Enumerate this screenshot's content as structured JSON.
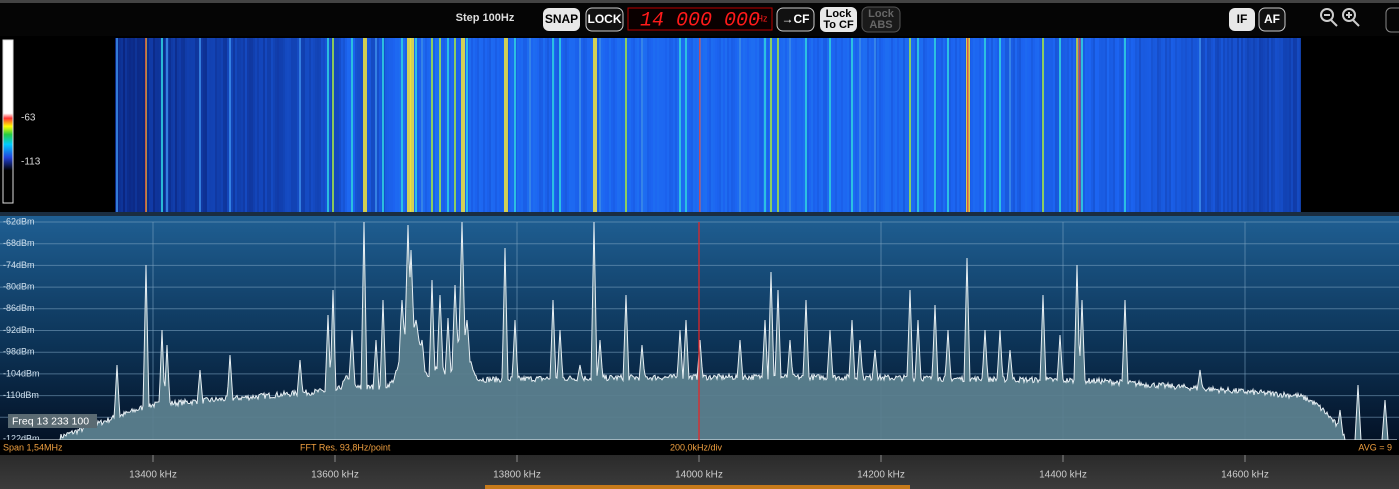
{
  "toolbar": {
    "step": "Step 100Hz",
    "snap": "SNAP",
    "lock": "LOCK",
    "frequency": "14 000 000",
    "frequency_unit": "Hz",
    "to_cf": "→CF",
    "lock_to_cf": [
      "Lock",
      "To CF"
    ],
    "lock_abs": [
      "Lock",
      "ABS"
    ],
    "if": "IF",
    "af": "AF"
  },
  "waterfall": {
    "scale_labels": [
      "-63",
      "-113"
    ]
  },
  "spectrum": {
    "level_labels": [
      "-62dBm",
      "-68dBm",
      "-74dBm",
      "-80dBm",
      "-86dBm",
      "-92dBm",
      "-98dBm",
      "-104dBm",
      "-110dBm"
    ],
    "floor_label": "-122dBm",
    "cursor_readout": "Freq 13 233 100"
  },
  "status": {
    "span": "Span 1,54MHz",
    "fft_res": "FFT Res. 93,8Hz/point",
    "division": "200,0kHz/div",
    "averaging": "AVG = 9"
  },
  "frequency_axis": {
    "labels": [
      "13400 kHz",
      "13600 kHz",
      "13800 kHz",
      "14000 kHz",
      "14200 kHz",
      "14400 kHz",
      "14600 kHz"
    ]
  }
}
